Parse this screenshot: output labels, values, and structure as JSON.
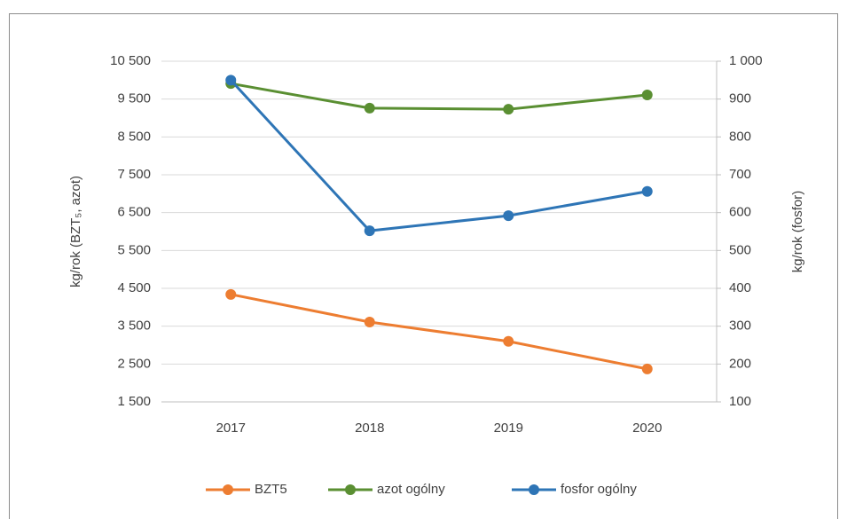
{
  "chart_data": {
    "type": "line",
    "categories": [
      "2017",
      "2018",
      "2019",
      "2020"
    ],
    "ylabel": "kg/rok (BZT₅, azot)",
    "y2label": "kg/rok (fosfor)",
    "ylim": [
      1500,
      10500
    ],
    "yticks": [
      {
        "value": 1500,
        "label": "1 500"
      },
      {
        "value": 2500,
        "label": "2 500"
      },
      {
        "value": 3500,
        "label": "3 500"
      },
      {
        "value": 4500,
        "label": "4 500"
      },
      {
        "value": 5500,
        "label": "5 500"
      },
      {
        "value": 6500,
        "label": "6 500"
      },
      {
        "value": 7500,
        "label": "7 500"
      },
      {
        "value": 8500,
        "label": "8 500"
      },
      {
        "value": 9500,
        "label": "9 500"
      },
      {
        "value": 10500,
        "label": "10 500"
      }
    ],
    "y2lim": [
      100,
      1000
    ],
    "y2ticks": [
      100,
      200,
      300,
      400,
      500,
      600,
      700,
      800,
      900,
      {
        "value": 1000,
        "label": "1 000"
      }
    ],
    "grid": true,
    "legend": "bottom",
    "series": [
      {
        "name": "BZT5",
        "color": "#ed7d31",
        "values": [
          4340,
          3610,
          3100,
          2370
        ]
      },
      {
        "name": "azot ogólny",
        "color": "#5a8f32",
        "values": [
          9910,
          9260,
          9230,
          9610
        ]
      },
      {
        "name": "fosfor ogólny",
        "color": "#2e75b6",
        "values": [
          950,
          552,
          592,
          656
        ],
        "axis": "y2"
      }
    ]
  }
}
